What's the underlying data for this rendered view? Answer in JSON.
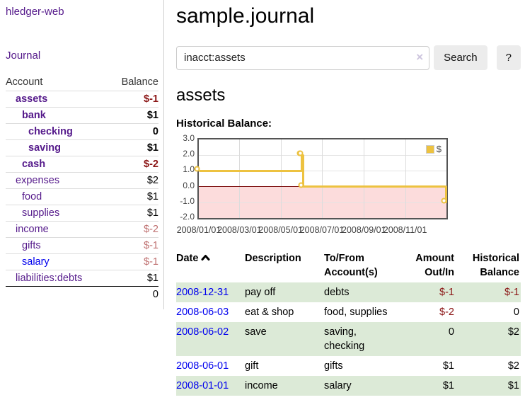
{
  "colors": {
    "link_purple": "#551a8b",
    "link_blue": "#0000ee",
    "negative_red": "#8b1515",
    "negative_dim_red": "#bf7070",
    "row_stripe_green": "#dcead7",
    "chart_line": "#edc240",
    "chart_negative_fill": "#fcdcdc",
    "chart_zero_line": "#7d1010"
  },
  "sidebar": {
    "brand": "hledger-web",
    "journal_link": "Journal",
    "accounts_table": {
      "account_header": "Account",
      "balance_header": "Balance",
      "rows": [
        {
          "name": "assets",
          "indent": 0,
          "name_class": "bold",
          "balance": "$-1",
          "balance_class": "neg bold"
        },
        {
          "name": "bank",
          "indent": 1,
          "name_class": "bold",
          "balance": "$1",
          "balance_class": "bold"
        },
        {
          "name": "checking",
          "indent": 2,
          "name_class": "bold",
          "balance": "0",
          "balance_class": "bold"
        },
        {
          "name": "saving",
          "indent": 2,
          "name_class": "bold",
          "balance": "$1",
          "balance_class": "bold"
        },
        {
          "name": "cash",
          "indent": 1,
          "name_class": "bold",
          "balance": "$-2",
          "balance_class": "neg bold"
        },
        {
          "name": "expenses",
          "indent": 0,
          "name_class": "",
          "balance": "$2",
          "balance_class": ""
        },
        {
          "name": "food",
          "indent": 1,
          "name_class": "",
          "balance": "$1",
          "balance_class": ""
        },
        {
          "name": "supplies",
          "indent": 1,
          "name_class": "",
          "balance": "$1",
          "balance_class": ""
        },
        {
          "name": "income",
          "indent": 0,
          "name_class": "",
          "balance": "$-2",
          "balance_class": "neg-dim"
        },
        {
          "name": "gifts",
          "indent": 1,
          "name_class": "",
          "balance": "$-1",
          "balance_class": "neg-dim"
        },
        {
          "name": "salary",
          "indent": 1,
          "name_class": "blue",
          "balance": "$-1",
          "balance_class": "neg-dim"
        },
        {
          "name": "liabilities:debts",
          "indent": 0,
          "name_class": "",
          "balance": "$1",
          "balance_class": ""
        }
      ],
      "total": "0"
    }
  },
  "main": {
    "title": "sample.journal",
    "search": {
      "value": "inacct:assets",
      "clear_icon": "×",
      "search_button": "Search",
      "help_button": "?"
    },
    "account_heading": "assets",
    "chart_title": "Historical Balance:"
  },
  "chart_data": {
    "type": "line",
    "step": true,
    "title": "Historical Balance:",
    "x_start": "2008-01-01",
    "x_end": "2008-12-31",
    "ylim": [
      -2.0,
      3.0
    ],
    "yticks": [
      3.0,
      2.0,
      1.0,
      0.0,
      -1.0,
      -2.0
    ],
    "xticks": [
      "2008/01/01",
      "2008/03/01",
      "2008/05/01",
      "2008/07/01",
      "2008/09/01",
      "2008/11/01"
    ],
    "grid": true,
    "legend_position": "top-right",
    "legend": [
      {
        "label": "$",
        "color": "#edc240"
      }
    ],
    "series": [
      {
        "name": "$",
        "color": "#edc240",
        "points": [
          [
            "2008-01-01",
            1
          ],
          [
            "2008-06-01",
            2
          ],
          [
            "2008-06-02",
            2
          ],
          [
            "2008-06-03",
            0
          ],
          [
            "2008-12-31",
            -1
          ]
        ]
      }
    ]
  },
  "register": {
    "headers": [
      {
        "label": "Date",
        "sorted": "asc"
      },
      {
        "label": "Description"
      },
      {
        "label": "To/From Account(s)"
      },
      {
        "label": "Amount Out/In"
      },
      {
        "label": "Historical Balance"
      }
    ],
    "rows": [
      {
        "date": "2008-12-31",
        "description": "pay off",
        "accounts": "debts",
        "amount": "$-1",
        "amount_class": "neg",
        "balance": "$-1",
        "balance_class": "neg"
      },
      {
        "date": "2008-06-03",
        "description": "eat & shop",
        "accounts": "food, supplies",
        "amount": "$-2",
        "amount_class": "neg",
        "balance": "0",
        "balance_class": ""
      },
      {
        "date": "2008-06-02",
        "description": "save",
        "accounts": "saving, checking",
        "amount": "0",
        "amount_class": "",
        "balance": "$2",
        "balance_class": ""
      },
      {
        "date": "2008-06-01",
        "description": "gift",
        "accounts": "gifts",
        "amount": "$1",
        "amount_class": "",
        "balance": "$2",
        "balance_class": ""
      },
      {
        "date": "2008-01-01",
        "description": "income",
        "accounts": "salary",
        "amount": "$1",
        "amount_class": "",
        "balance": "$1",
        "balance_class": ""
      }
    ]
  }
}
